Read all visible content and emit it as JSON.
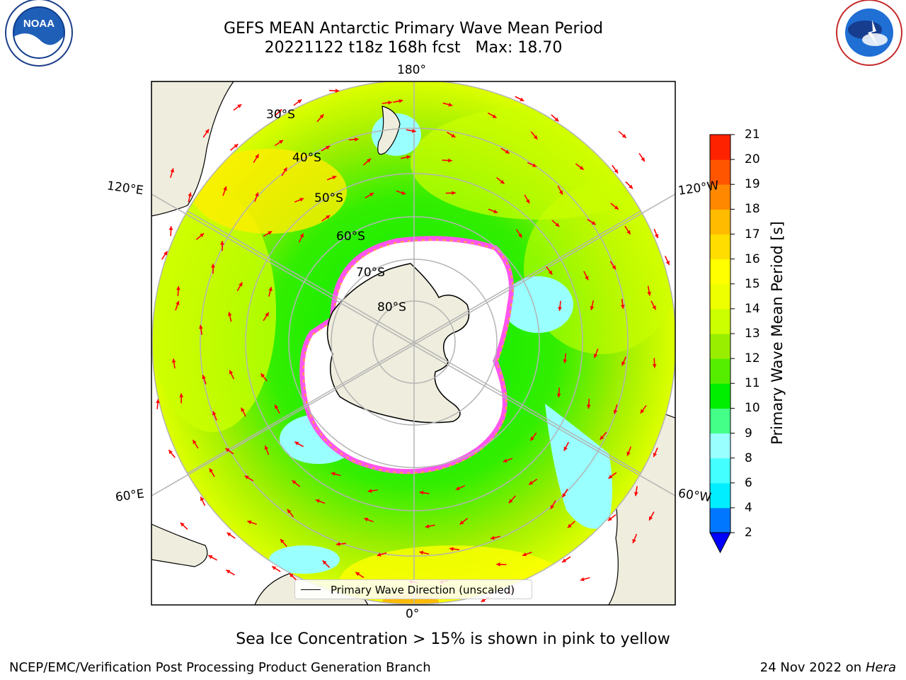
{
  "title": {
    "line1": "GEFS MEAN Antarctic Primary Wave Mean Period",
    "line2": "20221122 t18z 168h fcst   Max: 18.70"
  },
  "map": {
    "projection": "south-polar-stereographic",
    "meridian_labels": [
      "180°",
      "120°E",
      "120°W",
      "60°E",
      "60°W",
      "0°"
    ],
    "latitude_labels": [
      "30°S",
      "40°S",
      "50°S",
      "60°S",
      "70°S",
      "80°S"
    ],
    "legend": "Primary Wave Direction (unscaled)",
    "colors": {
      "land": "#efeddd",
      "sea_ice": "#ffffff",
      "sea_ice_edge": "#ff55ee",
      "arrows": "#ff0000",
      "grid": "#b4b4b4"
    }
  },
  "colorbar": {
    "label": "Primary Wave Mean Period [s]",
    "ticks": [
      "2",
      "4",
      "6",
      "8",
      "9",
      "10",
      "11",
      "12",
      "13",
      "14",
      "15",
      "16",
      "17",
      "18",
      "19",
      "20",
      "21"
    ],
    "colors": [
      "#0077ff",
      "#00eeff",
      "#44ffff",
      "#99ffff",
      "#44ff88",
      "#00ee00",
      "#55ee00",
      "#99ee00",
      "#ccff00",
      "#eeff00",
      "#ffff00",
      "#ffdd00",
      "#ffbb00",
      "#ff8800",
      "#ff5500",
      "#ff2200"
    ],
    "under_color": "#0000ff"
  },
  "footnote": "Sea Ice Concentration > 15% is shown in pink to yellow",
  "credit_left": "NCEP/EMC/Verification Post Processing Product Generation Branch",
  "credit_date": "24 Nov 2022 on",
  "credit_system": "Hera",
  "logos": {
    "left": "NOAA",
    "left_ring": "NATIONAL OCEANIC AND ATMOSPHERIC ADMINISTRATION • U.S. DEPARTMENT OF COMMERCE",
    "right_ring": "NATIONAL WEATHER SERVICE"
  }
}
